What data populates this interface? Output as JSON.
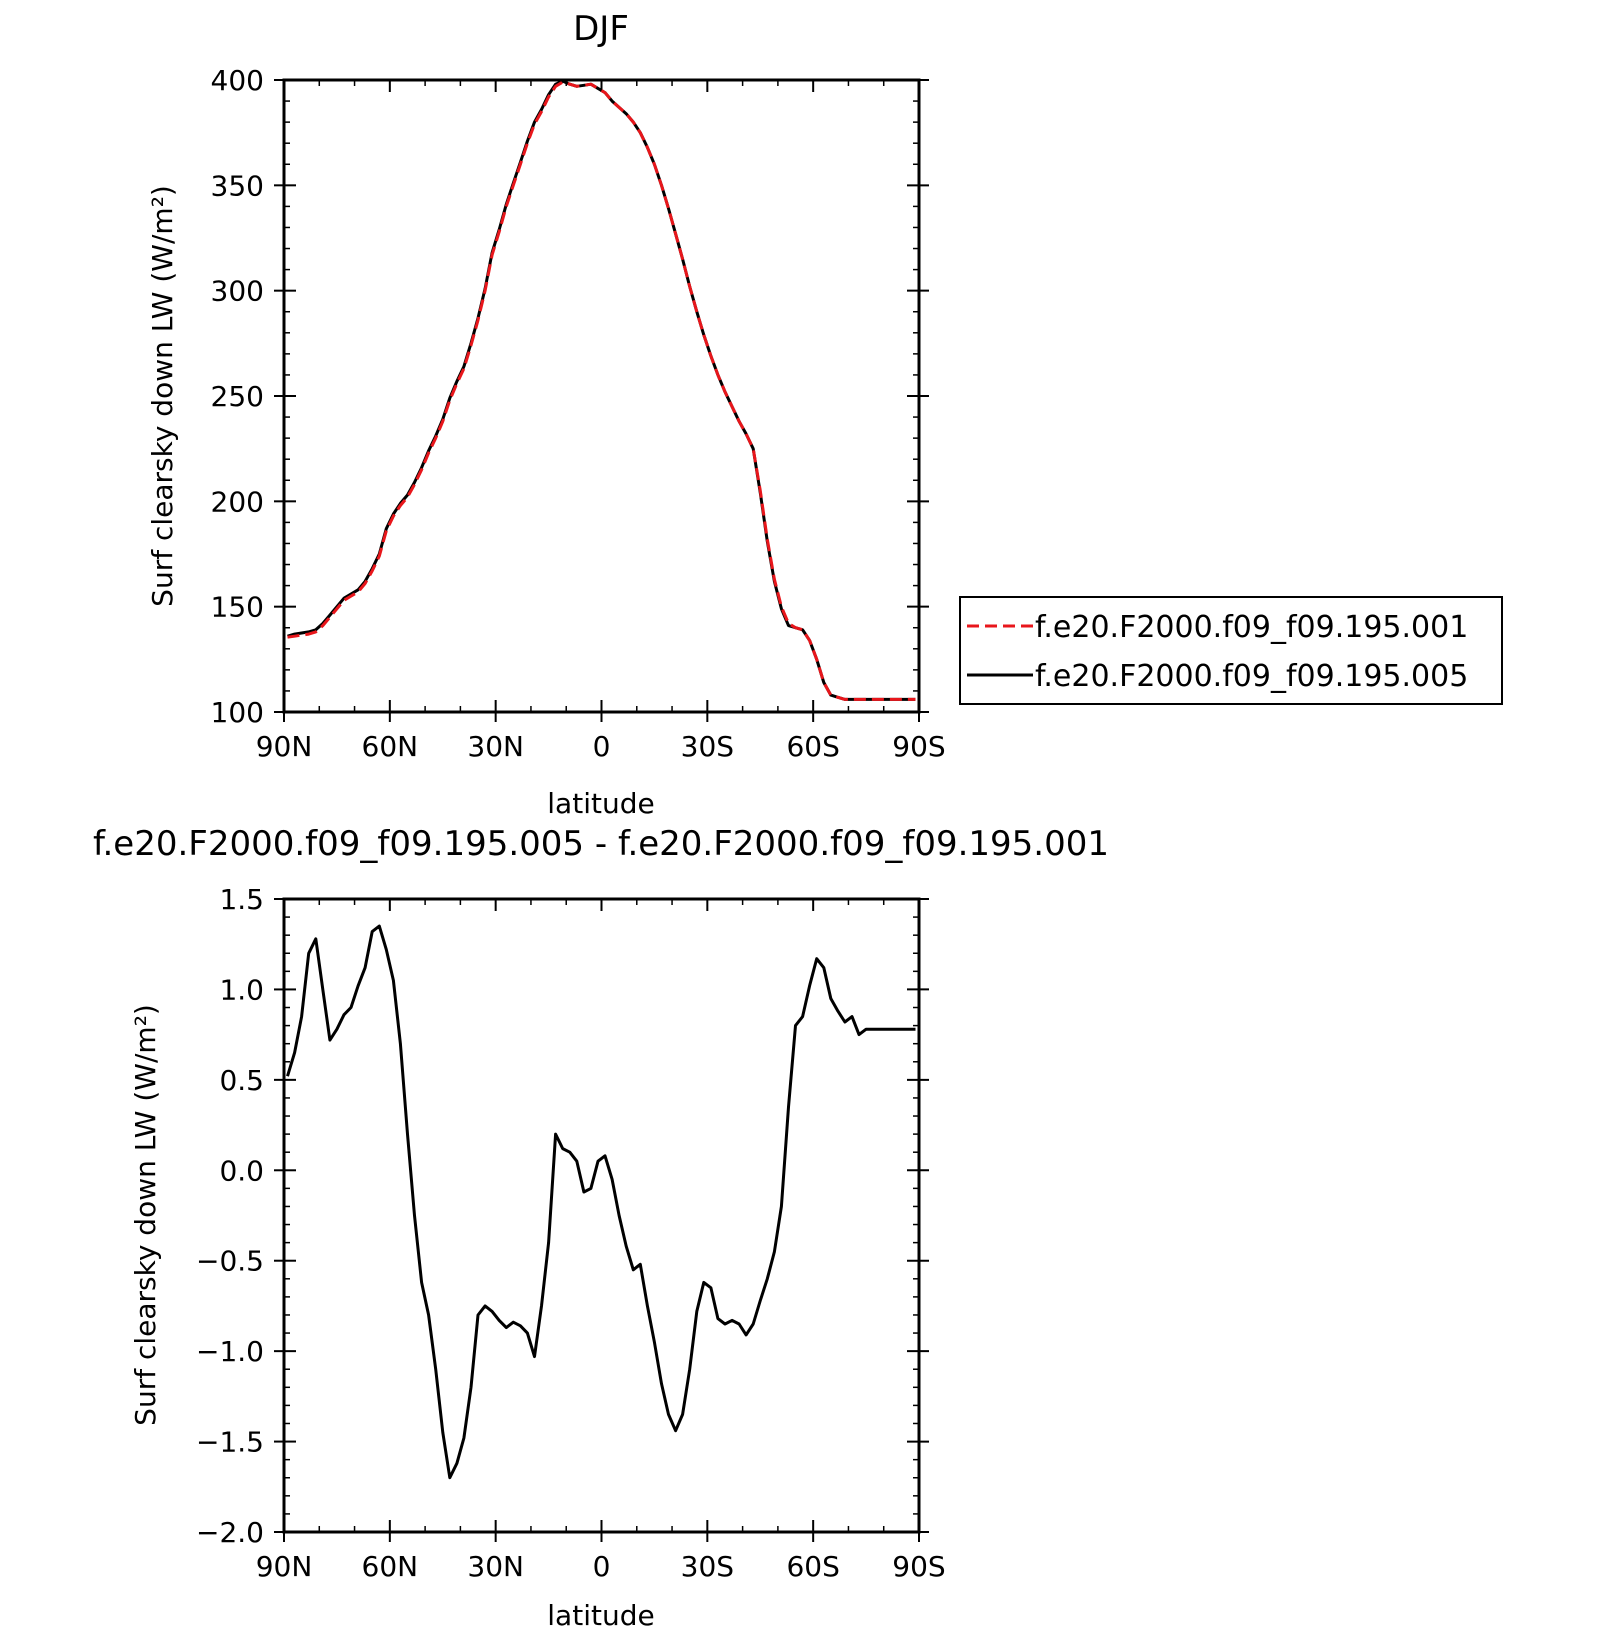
{
  "chart_data": [
    {
      "type": "line",
      "title": "DJF",
      "xlabel": "latitude",
      "ylabel": "Surf clearsky down LW (W/m²)",
      "xlim": [
        90,
        -90
      ],
      "ylim": [
        100,
        400
      ],
      "x_ticks": [
        90,
        60,
        30,
        0,
        -30,
        -60,
        -90
      ],
      "x_tick_labels": [
        "90N",
        "60N",
        "30N",
        "0",
        "30S",
        "60S",
        "90S"
      ],
      "y_ticks": [
        100,
        150,
        200,
        250,
        300,
        350,
        400
      ],
      "y_tick_labels": [
        "100",
        "150",
        "200",
        "250",
        "300",
        "350",
        "400"
      ],
      "legend_position": "right",
      "series": [
        {
          "name": "f.e20.F2000.f09_f09.195.001",
          "color": "#e8161b",
          "dash": "dashed",
          "x": [
            89,
            87,
            85,
            83,
            81,
            79,
            77,
            75,
            73,
            71,
            69,
            67,
            65,
            63,
            61,
            59,
            57,
            55,
            53,
            51,
            49,
            47,
            45,
            43,
            41,
            39,
            37,
            35,
            33,
            31,
            29,
            27,
            25,
            23,
            21,
            19,
            17,
            15,
            13,
            11,
            9,
            7,
            5,
            3,
            1,
            -1,
            -3,
            -5,
            -7,
            -9,
            -11,
            -13,
            -15,
            -17,
            -19,
            -21,
            -23,
            -25,
            -27,
            -29,
            -31,
            -33,
            -35,
            -37,
            -39,
            -41,
            -43,
            -45,
            -47,
            -49,
            -51,
            -53,
            -55,
            -57,
            -59,
            -61,
            -63,
            -65,
            -67,
            -69,
            -71,
            -73,
            -75,
            -77,
            -79,
            -81,
            -83,
            -85,
            -87,
            -89
          ],
          "values": [
            135.5,
            136,
            136.5,
            137,
            138,
            141,
            145,
            149,
            153,
            155,
            157,
            161,
            167,
            174,
            186,
            193,
            198,
            202,
            208,
            215,
            223,
            230,
            238,
            248,
            256,
            263,
            274,
            286,
            300,
            317,
            328,
            340,
            350,
            360,
            370,
            379,
            385,
            392,
            397,
            399,
            398,
            397,
            397.5,
            398,
            396,
            394,
            390,
            387,
            384,
            380,
            375,
            368,
            360,
            350,
            339,
            327,
            315,
            302,
            290,
            279,
            269,
            260,
            252,
            245,
            238,
            232,
            225,
            205,
            182,
            163,
            150,
            142,
            140,
            139,
            134,
            125,
            114,
            108,
            107,
            106,
            106,
            106,
            106,
            106,
            106,
            106,
            106,
            106,
            106,
            106
          ]
        },
        {
          "name": "f.e20.F2000.f09_f09.195.005",
          "color": "#000000",
          "dash": "solid",
          "x": [
            89,
            87,
            85,
            83,
            81,
            79,
            77,
            75,
            73,
            71,
            69,
            67,
            65,
            63,
            61,
            59,
            57,
            55,
            53,
            51,
            49,
            47,
            45,
            43,
            41,
            39,
            37,
            35,
            33,
            31,
            29,
            27,
            25,
            23,
            21,
            19,
            17,
            15,
            13,
            11,
            9,
            7,
            5,
            3,
            1,
            -1,
            -3,
            -5,
            -7,
            -9,
            -11,
            -13,
            -15,
            -17,
            -19,
            -21,
            -23,
            -25,
            -27,
            -29,
            -31,
            -33,
            -35,
            -37,
            -39,
            -41,
            -43,
            -45,
            -47,
            -49,
            -51,
            -53,
            -55,
            -57,
            -59,
            -61,
            -63,
            -65,
            -67,
            -69,
            -71,
            -73,
            -75,
            -77,
            -79,
            -81,
            -83,
            -85,
            -87,
            -89
          ],
          "values": [
            136,
            137,
            137.5,
            138,
            139,
            142,
            146,
            150,
            154,
            156,
            158,
            162,
            168,
            175,
            187,
            194,
            199,
            203,
            209,
            216,
            224,
            231,
            239,
            249,
            257,
            264,
            275,
            287,
            301,
            318,
            329,
            341,
            351,
            361,
            371,
            380,
            386,
            393,
            398,
            399.5,
            398,
            397,
            397.5,
            398,
            396,
            394,
            390,
            387,
            384,
            380,
            375,
            368,
            360,
            350,
            339,
            327,
            315,
            302,
            290,
            279,
            269,
            260,
            252,
            245,
            238,
            232,
            225,
            204,
            181,
            162,
            149,
            141,
            140,
            139,
            134,
            125,
            114,
            108,
            107,
            106,
            106,
            106,
            106,
            106,
            106,
            106,
            106,
            106,
            106,
            106
          ]
        }
      ]
    },
    {
      "type": "line",
      "title": "f.e20.F2000.f09_f09.195.005 - f.e20.F2000.f09_f09.195.001",
      "xlabel": "latitude",
      "ylabel": "Surf clearsky down LW (W/m²)",
      "xlim": [
        90,
        -90
      ],
      "ylim": [
        -2.0,
        1.5
      ],
      "x_ticks": [
        90,
        60,
        30,
        0,
        -30,
        -60,
        -90
      ],
      "x_tick_labels": [
        "90N",
        "60N",
        "30N",
        "0",
        "30S",
        "60S",
        "90S"
      ],
      "y_ticks": [
        -2.0,
        -1.5,
        -1.0,
        -0.5,
        0.0,
        0.5,
        1.0,
        1.5
      ],
      "y_tick_labels": [
        "−2.0",
        "−1.5",
        "−1.0",
        "−0.5",
        "0.0",
        "0.5",
        "1.0",
        "1.5"
      ],
      "series": [
        {
          "color": "#000000",
          "x": [
            89,
            87,
            85,
            83,
            81,
            79,
            77,
            75,
            73,
            71,
            69,
            67,
            65,
            63,
            61,
            59,
            57,
            55,
            53,
            51,
            49,
            47,
            45,
            43,
            41,
            39,
            37,
            35,
            33,
            31,
            29,
            27,
            25,
            23,
            21,
            19,
            17,
            15,
            13,
            11,
            9,
            7,
            5,
            3,
            1,
            -1,
            -3,
            -5,
            -7,
            -9,
            -11,
            -13,
            -15,
            -17,
            -19,
            -21,
            -23,
            -25,
            -27,
            -29,
            -31,
            -33,
            -35,
            -37,
            -39,
            -41,
            -43,
            -45,
            -47,
            -49,
            -51,
            -53,
            -55,
            -57,
            -59,
            -61,
            -63,
            -65,
            -67,
            -69,
            -71,
            -73,
            -75,
            -77,
            -79,
            -81,
            -83,
            -85,
            -87,
            -89
          ],
          "values": [
            0.52,
            0.65,
            0.85,
            1.2,
            1.28,
            1.0,
            0.72,
            0.78,
            0.86,
            0.9,
            1.02,
            1.12,
            1.32,
            1.35,
            1.22,
            1.05,
            0.7,
            0.2,
            -0.25,
            -0.62,
            -0.8,
            -1.1,
            -1.45,
            -1.7,
            -1.62,
            -1.48,
            -1.2,
            -0.8,
            -0.75,
            -0.78,
            -0.83,
            -0.87,
            -0.84,
            -0.86,
            -0.9,
            -1.03,
            -0.75,
            -0.4,
            0.2,
            0.12,
            0.1,
            0.05,
            -0.12,
            -0.1,
            0.05,
            0.08,
            -0.05,
            -0.25,
            -0.42,
            -0.55,
            -0.52,
            -0.75,
            -0.95,
            -1.18,
            -1.35,
            -1.44,
            -1.35,
            -1.1,
            -0.78,
            -0.62,
            -0.65,
            -0.82,
            -0.85,
            -0.83,
            -0.85,
            -0.91,
            -0.85,
            -0.72,
            -0.6,
            -0.45,
            -0.2,
            0.35,
            0.8,
            0.85,
            1.02,
            1.17,
            1.12,
            0.95,
            0.88,
            0.82,
            0.85,
            0.75,
            0.78,
            0.78,
            0.78,
            0.78,
            0.78,
            0.78,
            0.78,
            0.78
          ]
        }
      ]
    }
  ]
}
